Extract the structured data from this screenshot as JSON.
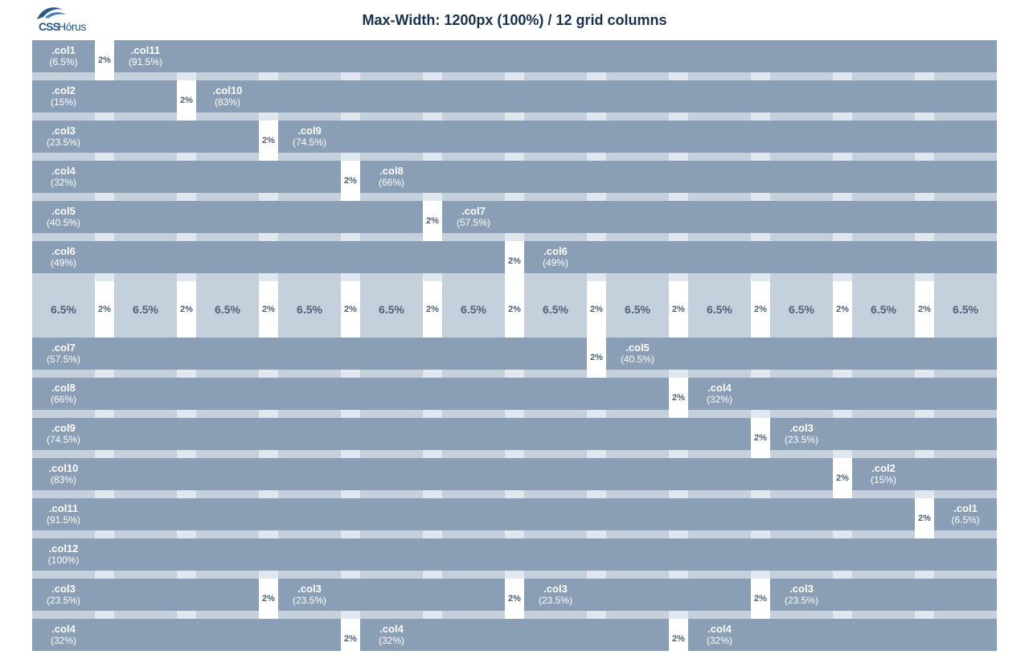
{
  "brand": {
    "logo_css": "CSS",
    "logo_name": "Hórus",
    "logo_color": "#27598a"
  },
  "title": "Max-Width: 1200px (100%) / 12 grid columns",
  "colors": {
    "block": "#8a9eb6",
    "row_background": "#e1e7ee",
    "column_stripe": "#b3c1d2",
    "gutter": "#ffffff",
    "label_text": "#4e6178",
    "title_text": "#17314f"
  },
  "gutter_label": "2%",
  "reference_row": {
    "column_label": "6.5%",
    "gutter_label": "2%",
    "column_count": 12,
    "after_row_index": 6
  },
  "rows": [
    {
      "cells": [
        {
          "cls": ".col1",
          "pct": "(6.5%)",
          "span": 1
        },
        {
          "cls": ".col11",
          "pct": "(91.5%)",
          "span": 11
        }
      ]
    },
    {
      "cells": [
        {
          "cls": ".col2",
          "pct": "(15%)",
          "span": 2
        },
        {
          "cls": ".col10",
          "pct": "(83%)",
          "span": 10
        }
      ]
    },
    {
      "cells": [
        {
          "cls": ".col3",
          "pct": "(23.5%)",
          "span": 3
        },
        {
          "cls": ".col9",
          "pct": "(74.5%)",
          "span": 9
        }
      ]
    },
    {
      "cells": [
        {
          "cls": ".col4",
          "pct": "(32%)",
          "span": 4
        },
        {
          "cls": ".col8",
          "pct": "(66%)",
          "span": 8
        }
      ]
    },
    {
      "cells": [
        {
          "cls": ".col5",
          "pct": "(40.5%)",
          "span": 5
        },
        {
          "cls": ".col7",
          "pct": "(57.5%)",
          "span": 7
        }
      ]
    },
    {
      "cells": [
        {
          "cls": ".col6",
          "pct": "(49%)",
          "span": 6
        },
        {
          "cls": ".col6",
          "pct": "(49%)",
          "span": 6
        }
      ]
    },
    {
      "cells": [
        {
          "cls": ".col7",
          "pct": "(57.5%)",
          "span": 7
        },
        {
          "cls": ".col5",
          "pct": "(40.5%)",
          "span": 5
        }
      ]
    },
    {
      "cells": [
        {
          "cls": ".col8",
          "pct": "(66%)",
          "span": 8
        },
        {
          "cls": ".col4",
          "pct": "(32%)",
          "span": 4
        }
      ]
    },
    {
      "cells": [
        {
          "cls": ".col9",
          "pct": "(74.5%)",
          "span": 9
        },
        {
          "cls": ".col3",
          "pct": "(23.5%)",
          "span": 3
        }
      ]
    },
    {
      "cells": [
        {
          "cls": ".col10",
          "pct": "(83%)",
          "span": 10
        },
        {
          "cls": ".col2",
          "pct": "(15%)",
          "span": 2
        }
      ]
    },
    {
      "cells": [
        {
          "cls": ".col11",
          "pct": "(91.5%)",
          "span": 11
        },
        {
          "cls": ".col1",
          "pct": "(6.5%)",
          "span": 1
        }
      ]
    },
    {
      "cells": [
        {
          "cls": ".col12",
          "pct": "(100%)",
          "span": 12
        }
      ]
    },
    {
      "cells": [
        {
          "cls": ".col3",
          "pct": "(23.5%)",
          "span": 3
        },
        {
          "cls": ".col3",
          "pct": "(23.5%)",
          "span": 3
        },
        {
          "cls": ".col3",
          "pct": "(23.5%)",
          "span": 3
        },
        {
          "cls": ".col3",
          "pct": "(23.5%)",
          "span": 3
        }
      ]
    },
    {
      "cells": [
        {
          "cls": ".col4",
          "pct": "(32%)",
          "span": 4
        },
        {
          "cls": ".col4",
          "pct": "(32%)",
          "span": 4
        },
        {
          "cls": ".col4",
          "pct": "(32%)",
          "span": 4
        }
      ]
    }
  ]
}
